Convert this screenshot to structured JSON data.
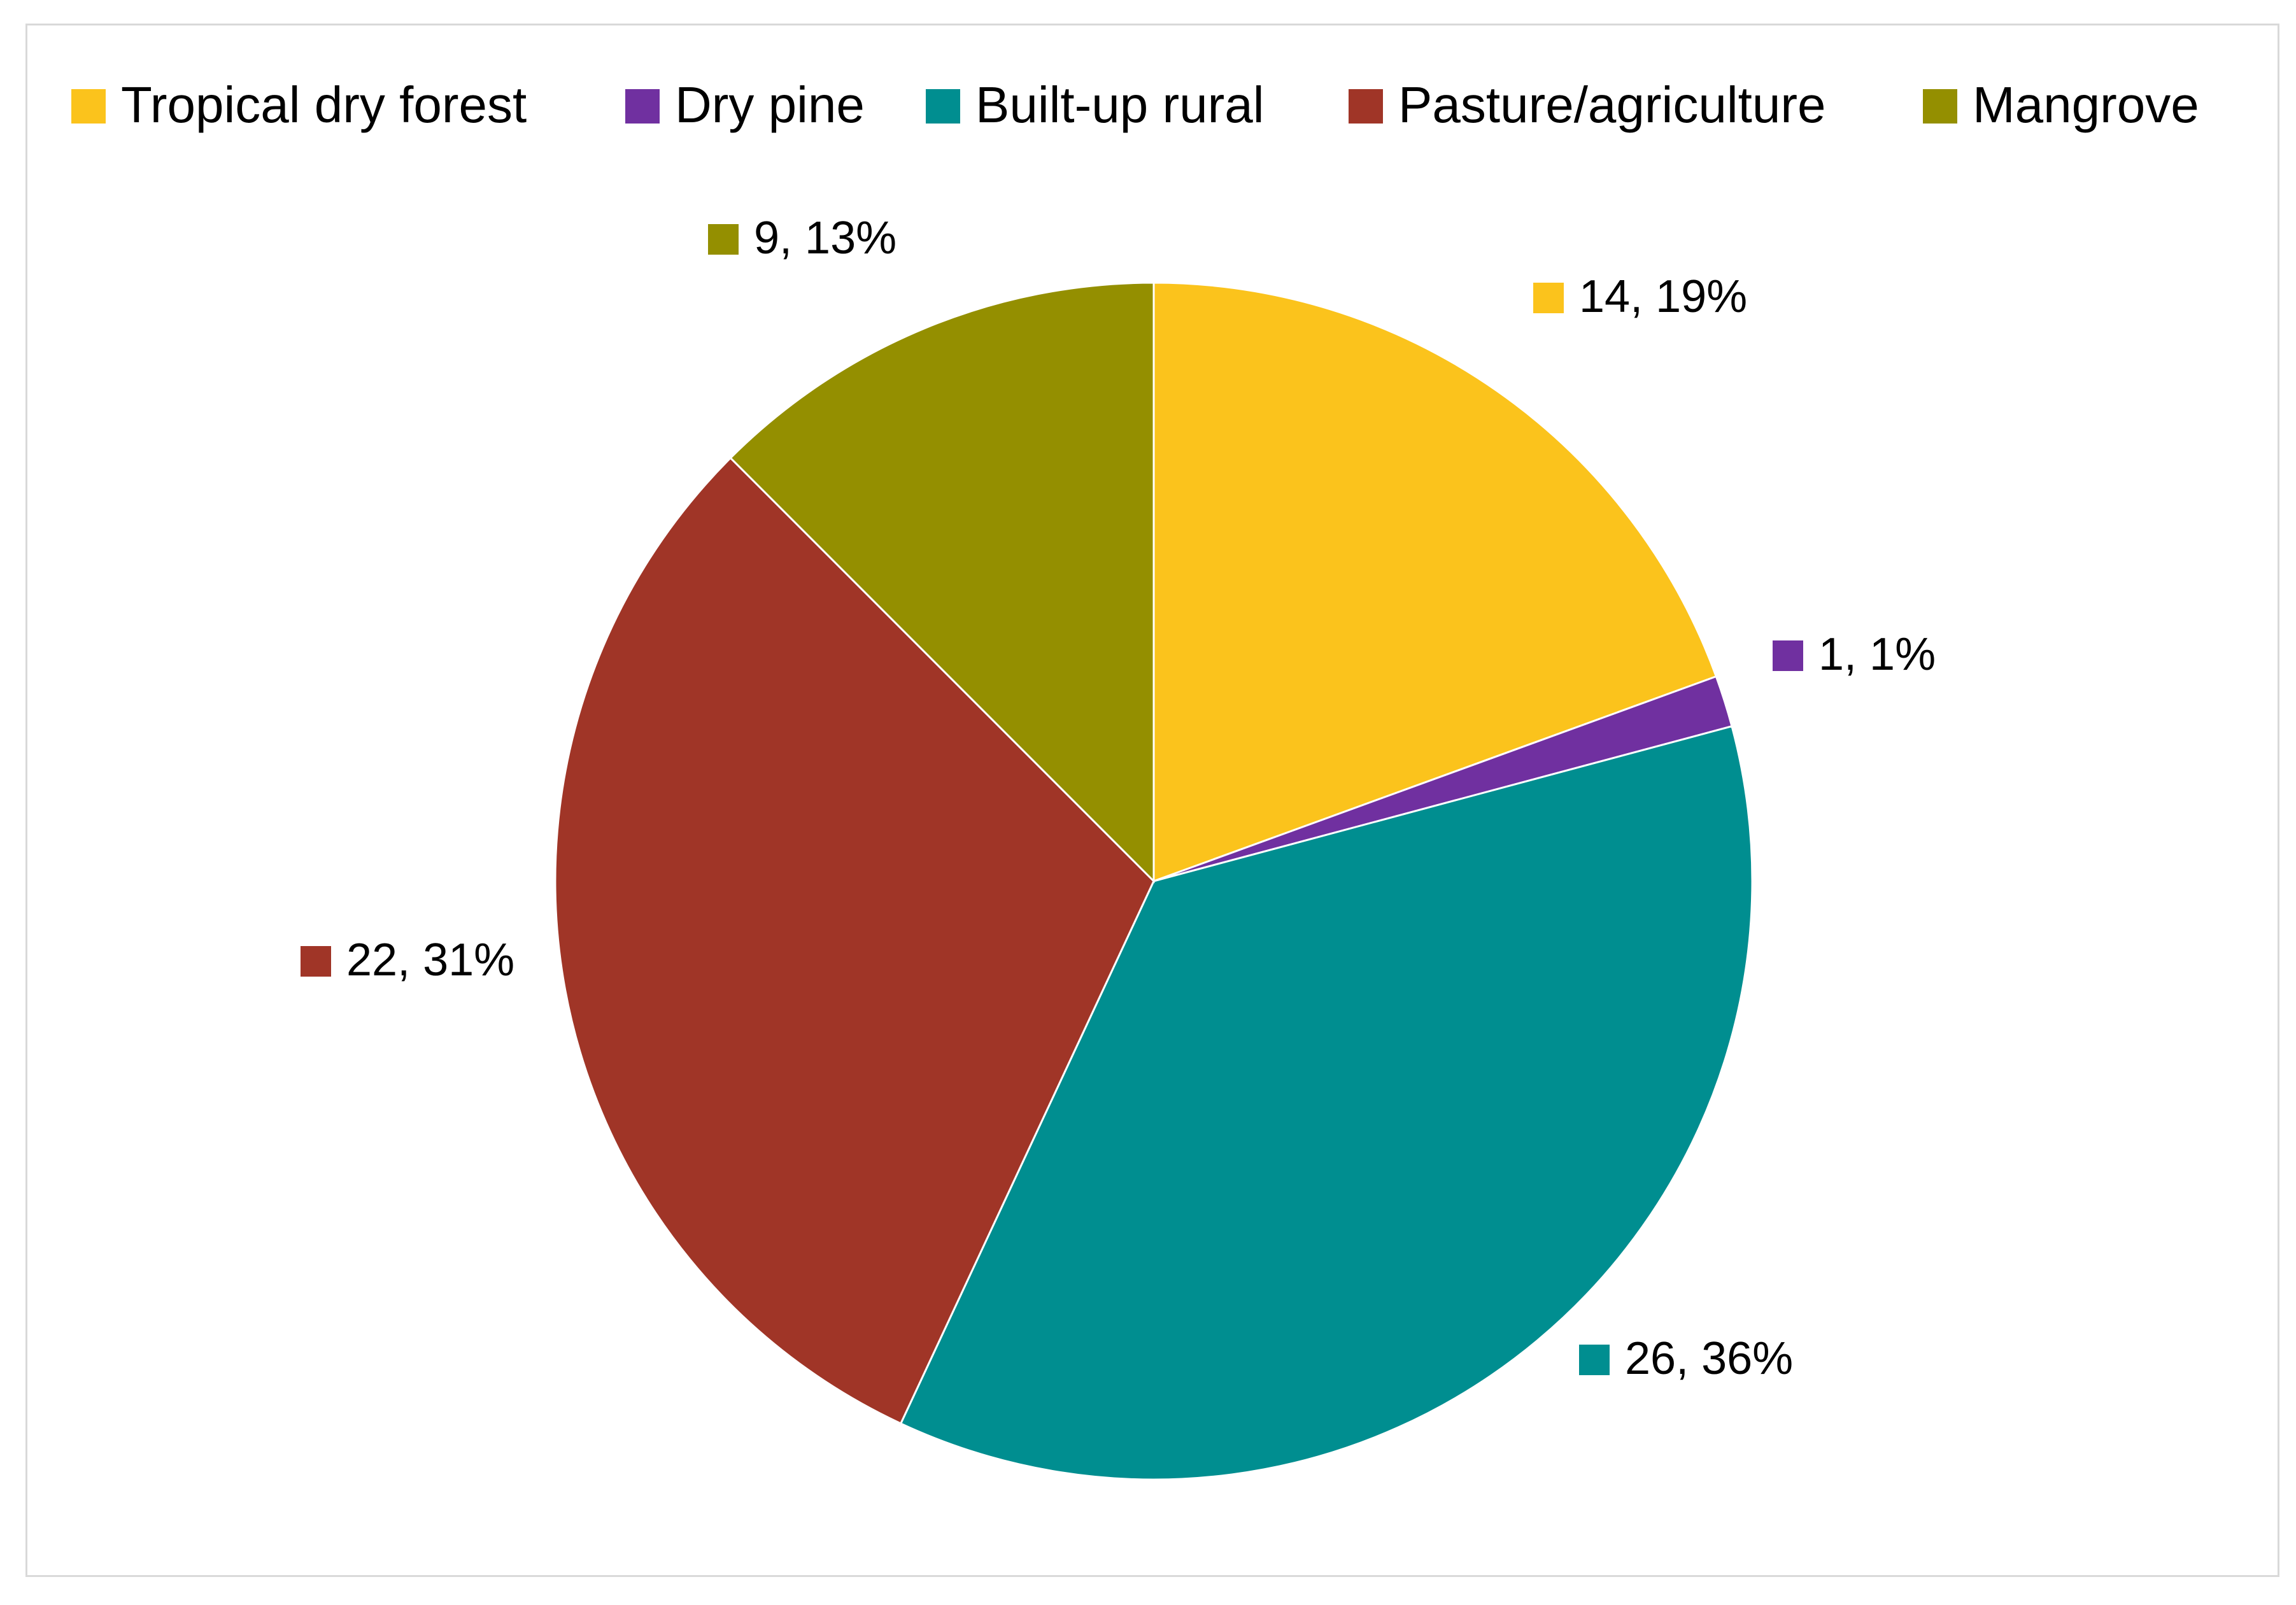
{
  "chart_data": {
    "type": "pie",
    "title": "",
    "slices": [
      {
        "name": "Tropical dry forest",
        "value": 14,
        "percent": "19%",
        "color": "#FBC31C"
      },
      {
        "name": "Dry pine",
        "value": 1,
        "percent": "1%",
        "color": "#7030A0"
      },
      {
        "name": "Built-up rural",
        "value": 26,
        "percent": "36%",
        "color": "#008E90"
      },
      {
        "name": "Pasture/agriculture",
        "value": 22,
        "percent": "31%",
        "color": "#A03527"
      },
      {
        "name": "Mangrove",
        "value": 9,
        "percent": "13%",
        "color": "#948F00"
      }
    ],
    "start_angle": "12 o'clock, clockwise",
    "legend_position": "top",
    "data_labels": [
      "14, 19%",
      "1, 1%",
      "26, 36%",
      "22, 31%",
      "9, 13%"
    ]
  }
}
